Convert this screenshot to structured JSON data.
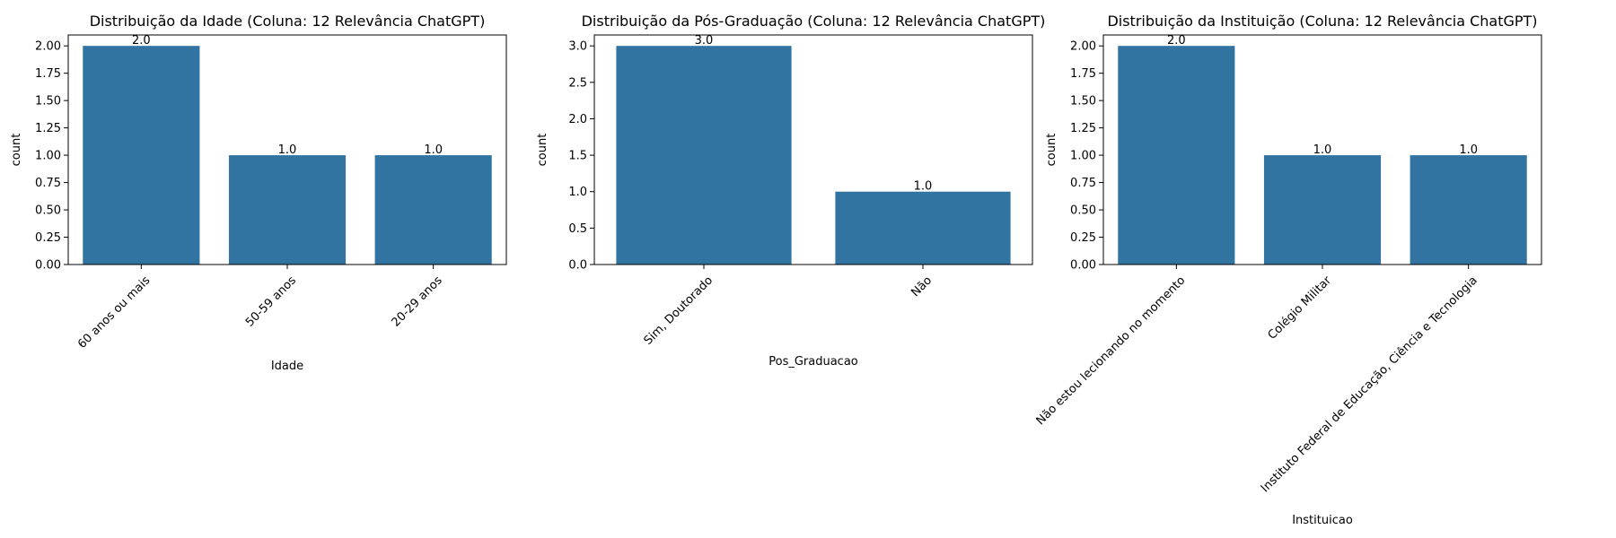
{
  "chart_data": [
    {
      "type": "bar",
      "title": "Distribuição da Idade (Coluna: 12 Relevância ChatGPT)",
      "xlabel": "Idade",
      "ylabel": "count",
      "categories": [
        "60 anos ou mais",
        "50-59 anos",
        "20-29 anos"
      ],
      "values": [
        2.0,
        1.0,
        1.0
      ],
      "data_labels": [
        "2.0",
        "1.0",
        "1.0"
      ],
      "ylim": [
        0,
        2.1
      ],
      "yticks": [
        0,
        0.25,
        0.5,
        0.75,
        1.0,
        1.25,
        1.5,
        1.75,
        2.0
      ],
      "ytick_labels": [
        "0.00",
        "0.25",
        "0.50",
        "0.75",
        "1.00",
        "1.25",
        "1.50",
        "1.75",
        "2.00"
      ],
      "color": "#3274a1",
      "grid": false,
      "xtick_rotation": -45
    },
    {
      "type": "bar",
      "title": "Distribuição da Pós-Graduação (Coluna: 12 Relevância ChatGPT)",
      "xlabel": "Pos_Graduacao",
      "ylabel": "count",
      "categories": [
        "Sim, Doutorado",
        "Não"
      ],
      "values": [
        3.0,
        1.0
      ],
      "data_labels": [
        "3.0",
        "1.0"
      ],
      "ylim": [
        0,
        3.15
      ],
      "yticks": [
        0,
        0.5,
        1.0,
        1.5,
        2.0,
        2.5,
        3.0
      ],
      "ytick_labels": [
        "0.0",
        "0.5",
        "1.0",
        "1.5",
        "2.0",
        "2.5",
        "3.0"
      ],
      "color": "#3274a1",
      "grid": false,
      "xtick_rotation": -45
    },
    {
      "type": "bar",
      "title": "Distribuição da Instituição (Coluna: 12 Relevância ChatGPT)",
      "xlabel": "Instituicao",
      "ylabel": "count",
      "categories": [
        "Não estou lecionando no momento",
        "Colégio Militar",
        "Instituto Federal de Educação, Ciência e Tecnologia"
      ],
      "values": [
        2.0,
        1.0,
        1.0
      ],
      "data_labels": [
        "2.0",
        "1.0",
        "1.0"
      ],
      "ylim": [
        0,
        2.1
      ],
      "yticks": [
        0,
        0.25,
        0.5,
        0.75,
        1.0,
        1.25,
        1.5,
        1.75,
        2.0
      ],
      "ytick_labels": [
        "0.00",
        "0.25",
        "0.50",
        "0.75",
        "1.00",
        "1.25",
        "1.50",
        "1.75",
        "2.00"
      ],
      "color": "#3274a1",
      "grid": false,
      "xtick_rotation": -45
    }
  ]
}
